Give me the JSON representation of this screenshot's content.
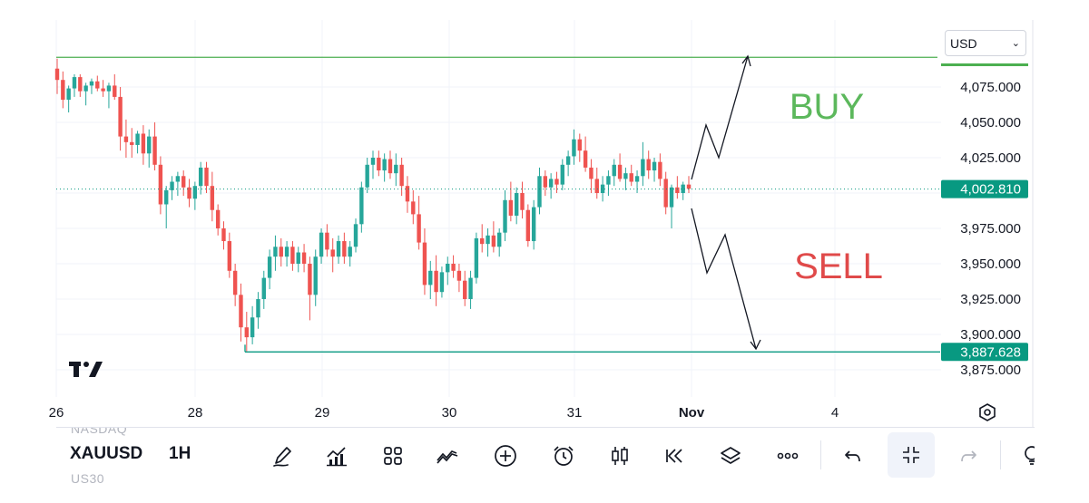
{
  "header": {
    "currency_selector": "USD"
  },
  "chart_data": {
    "type": "candlestick",
    "symbol": "XAUUSD",
    "interval": "1H",
    "currency": "USD",
    "y_ticks": [
      4075,
      4050,
      4025,
      3975,
      3950,
      3925,
      3900,
      3875
    ],
    "y_tick_labels": [
      "4,075.000",
      "4,050.000",
      "4,025.000",
      "3,975.000",
      "3,950.000",
      "3,925.000",
      "3,900.000",
      "3,875.000"
    ],
    "x_tick_labels": [
      "26",
      "28",
      "29",
      "30",
      "31",
      "Nov",
      "4"
    ],
    "ylim": [
      3862,
      4107
    ],
    "last_price": {
      "value": 4002.81,
      "label": "4,002.810",
      "color": "#089981"
    },
    "support_level": {
      "value": 3887.628,
      "label": "3,887.628",
      "color": "#089981"
    },
    "resistance_level": {
      "value": 4096.0,
      "color": "#4caf50"
    },
    "annotations": [
      {
        "text": "BUY",
        "color": "#5cb85c"
      },
      {
        "text": "SELL",
        "color": "#e04a4a"
      }
    ],
    "up_color": "#26a69a",
    "down_color": "#ef5350",
    "candles": [
      [
        4088,
        4095,
        4070,
        4080
      ],
      [
        4080,
        4086,
        4060,
        4066
      ],
      [
        4066,
        4076,
        4057,
        4074
      ],
      [
        4074,
        4084,
        4068,
        4082
      ],
      [
        4082,
        4084,
        4068,
        4072
      ],
      [
        4072,
        4078,
        4062,
        4076
      ],
      [
        4076,
        4081,
        4070,
        4079
      ],
      [
        4079,
        4083,
        4072,
        4074
      ],
      [
        4074,
        4080,
        4068,
        4072
      ],
      [
        4072,
        4078,
        4060,
        4076
      ],
      [
        4076,
        4084,
        4066,
        4068
      ],
      [
        4068,
        4075,
        4030,
        4040
      ],
      [
        4040,
        4052,
        4025,
        4036
      ],
      [
        4036,
        4046,
        4025,
        4034
      ],
      [
        4034,
        4044,
        4028,
        4042
      ],
      [
        4042,
        4048,
        4020,
        4028
      ],
      [
        4028,
        4045,
        4018,
        4040
      ],
      [
        4040,
        4050,
        4016,
        4020
      ],
      [
        4020,
        4026,
        3985,
        3992
      ],
      [
        3992,
        4005,
        3975,
        4002
      ],
      [
        4002,
        4012,
        3995,
        4008
      ],
      [
        4008,
        4015,
        3998,
        4012
      ],
      [
        4012,
        4016,
        3998,
        4004
      ],
      [
        4004,
        4010,
        3990,
        3996
      ],
      [
        3996,
        4008,
        3988,
        4005
      ],
      [
        4005,
        4022,
        3999,
        4018
      ],
      [
        4018,
        4022,
        4000,
        4005
      ],
      [
        4005,
        4015,
        3980,
        3988
      ],
      [
        3988,
        3992,
        3970,
        3975
      ],
      [
        3975,
        3980,
        3960,
        3966
      ],
      [
        3966,
        3972,
        3940,
        3945
      ],
      [
        3945,
        3950,
        3920,
        3928
      ],
      [
        3928,
        3936,
        3895,
        3905
      ],
      [
        3905,
        3916,
        3888,
        3898
      ],
      [
        3898,
        3920,
        3893,
        3912
      ],
      [
        3912,
        3930,
        3904,
        3925
      ],
      [
        3925,
        3945,
        3918,
        3940
      ],
      [
        3940,
        3960,
        3932,
        3955
      ],
      [
        3955,
        3970,
        3945,
        3962
      ],
      [
        3962,
        3968,
        3948,
        3955
      ],
      [
        3955,
        3966,
        3948,
        3962
      ],
      [
        3962,
        3966,
        3945,
        3950
      ],
      [
        3950,
        3962,
        3944,
        3958
      ],
      [
        3958,
        3964,
        3944,
        3950
      ],
      [
        3950,
        3955,
        3910,
        3928
      ],
      [
        3928,
        3960,
        3920,
        3955
      ],
      [
        3955,
        3975,
        3950,
        3972
      ],
      [
        3972,
        3978,
        3955,
        3960
      ],
      [
        3960,
        3968,
        3944,
        3955
      ],
      [
        3955,
        3970,
        3950,
        3966
      ],
      [
        3966,
        3972,
        3950,
        3955
      ],
      [
        3955,
        3966,
        3948,
        3962
      ],
      [
        3962,
        3982,
        3958,
        3978
      ],
      [
        3978,
        4008,
        3972,
        4004
      ],
      [
        4004,
        4025,
        4000,
        4020
      ],
      [
        4020,
        4030,
        4010,
        4025
      ],
      [
        4025,
        4030,
        4012,
        4016
      ],
      [
        4016,
        4028,
        4008,
        4024
      ],
      [
        4024,
        4030,
        4010,
        4014
      ],
      [
        4014,
        4028,
        4005,
        4020
      ],
      [
        4020,
        4025,
        3998,
        4005
      ],
      [
        4005,
        4012,
        3986,
        3994
      ],
      [
        3994,
        4002,
        3978,
        3985
      ],
      [
        3985,
        3998,
        3960,
        3965
      ],
      [
        3965,
        3975,
        3928,
        3935
      ],
      [
        3935,
        3952,
        3925,
        3945
      ],
      [
        3945,
        3956,
        3920,
        3930
      ],
      [
        3930,
        3948,
        3926,
        3944
      ],
      [
        3944,
        3955,
        3935,
        3950
      ],
      [
        3950,
        3956,
        3940,
        3945
      ],
      [
        3945,
        3950,
        3930,
        3938
      ],
      [
        3938,
        3945,
        3920,
        3925
      ],
      [
        3925,
        3945,
        3918,
        3940
      ],
      [
        3940,
        3972,
        3936,
        3968
      ],
      [
        3968,
        3978,
        3958,
        3964
      ],
      [
        3964,
        3975,
        3955,
        3970
      ],
      [
        3970,
        3980,
        3958,
        3962
      ],
      [
        3962,
        3975,
        3955,
        3972
      ],
      [
        3972,
        4002,
        3966,
        3995
      ],
      [
        3995,
        4008,
        3980,
        3984
      ],
      [
        3984,
        4004,
        3978,
        4000
      ],
      [
        4000,
        4008,
        3982,
        3988
      ],
      [
        3988,
        3992,
        3962,
        3966
      ],
      [
        3966,
        3995,
        3960,
        3990
      ],
      [
        3990,
        4018,
        3985,
        4012
      ],
      [
        4012,
        4016,
        3998,
        4004
      ],
      [
        4004,
        4014,
        3996,
        4010
      ],
      [
        4010,
        4015,
        4000,
        4006
      ],
      [
        4006,
        4024,
        4002,
        4020
      ],
      [
        4020,
        4030,
        4012,
        4026
      ],
      [
        4026,
        4045,
        4020,
        4038
      ],
      [
        4038,
        4042,
        4022,
        4030
      ],
      [
        4030,
        4040,
        4015,
        4018
      ],
      [
        4018,
        4024,
        4000,
        4010
      ],
      [
        4010,
        4018,
        3996,
        4000
      ],
      [
        4000,
        4012,
        3994,
        4006
      ],
      [
        4006,
        4016,
        3998,
        4012
      ],
      [
        4012,
        4024,
        4005,
        4020
      ],
      [
        4020,
        4028,
        4008,
        4010
      ],
      [
        4010,
        4018,
        4002,
        4014
      ],
      [
        4014,
        4020,
        4005,
        4008
      ],
      [
        4008,
        4016,
        4000,
        4012
      ],
      [
        4012,
        4036,
        4005,
        4024
      ],
      [
        4024,
        4030,
        4010,
        4016
      ],
      [
        4016,
        4025,
        4008,
        4022
      ],
      [
        4022,
        4028,
        4005,
        4010
      ],
      [
        4010,
        4015,
        3985,
        3990
      ],
      [
        3990,
        4006,
        3975,
        4004
      ],
      [
        4004,
        4012,
        3996,
        4000
      ],
      [
        4000,
        4008,
        3995,
        4006
      ],
      [
        4006,
        4012,
        4000,
        4003
      ]
    ]
  },
  "toolbar": {
    "prev_symbols": "NASDAQ",
    "next_symbols": "US30",
    "symbol": "XAUUSD",
    "interval": "1H"
  }
}
